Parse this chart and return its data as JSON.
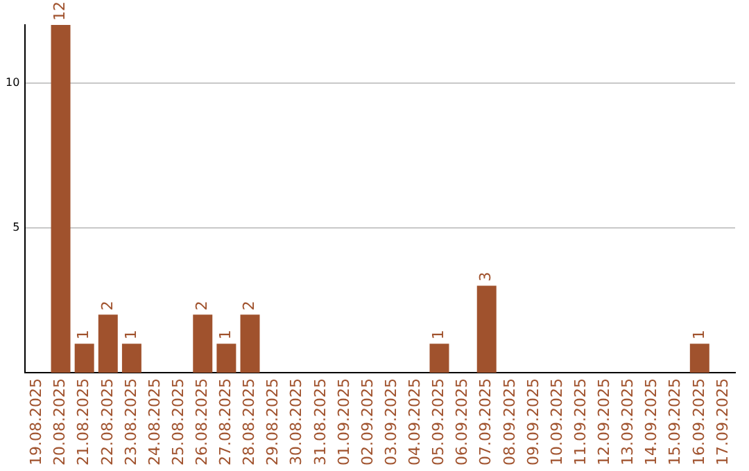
{
  "chart_data": {
    "type": "bar",
    "categories": [
      "19.08.2025",
      "20.08.2025",
      "21.08.2025",
      "22.08.2025",
      "23.08.2025",
      "24.08.2025",
      "25.08.2025",
      "26.08.2025",
      "27.08.2025",
      "28.08.2025",
      "29.08.2025",
      "30.08.2025",
      "31.08.2025",
      "01.09.2025",
      "02.09.2025",
      "03.09.2025",
      "04.09.2025",
      "05.09.2025",
      "06.09.2025",
      "07.09.2025",
      "08.09.2025",
      "09.09.2025",
      "10.09.2025",
      "11.09.2025",
      "12.09.2025",
      "13.09.2025",
      "14.09.2025",
      "15.09.2025",
      "16.09.2025",
      "17.09.2025"
    ],
    "values": [
      0,
      12,
      1,
      2,
      1,
      0,
      0,
      2,
      1,
      2,
      0,
      0,
      0,
      0,
      0,
      0,
      0,
      1,
      0,
      3,
      0,
      0,
      0,
      0,
      0,
      0,
      0,
      0,
      1,
      0
    ],
    "value_labels": [
      null,
      "12",
      "1",
      "2",
      "1",
      null,
      null,
      "2",
      "1",
      "2",
      null,
      null,
      null,
      null,
      null,
      null,
      null,
      "1",
      null,
      "3",
      null,
      null,
      null,
      null,
      null,
      null,
      null,
      null,
      "1",
      null
    ],
    "color": "#a0522d",
    "ylim": [
      0,
      12
    ],
    "yticks": [
      5,
      10
    ],
    "grid": "y",
    "legend": false
  }
}
